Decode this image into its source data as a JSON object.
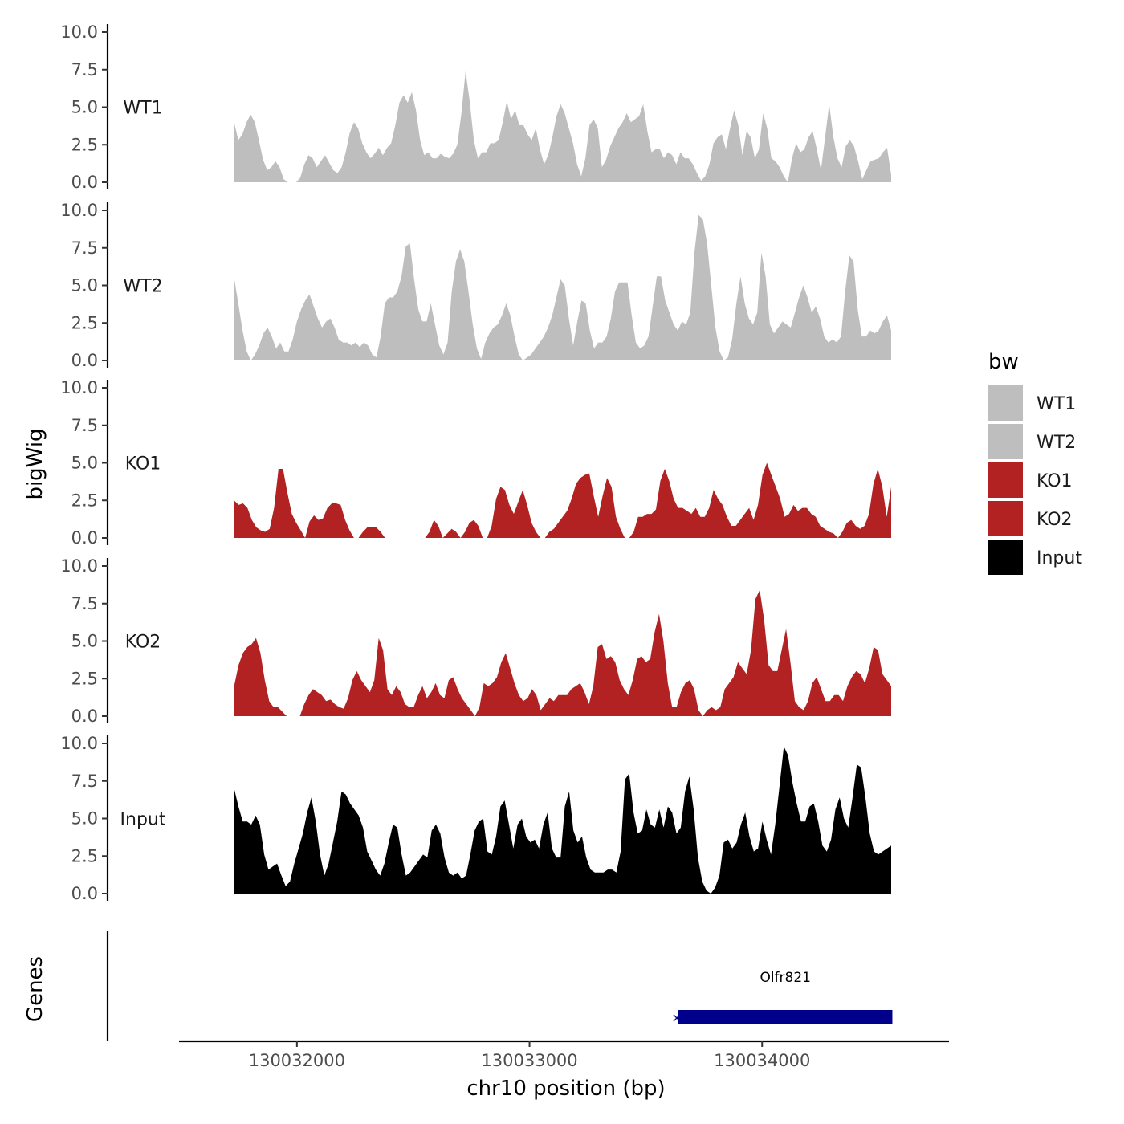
{
  "chart_data": {
    "type": "area",
    "xlabel": "chr10 position (bp)",
    "ylabel": "bigWig",
    "genes_ylabel": "Genes",
    "xlim": [
      130031500,
      130034800
    ],
    "x_ticks": [
      130032000,
      130033000,
      130034000
    ],
    "x_tick_labels": [
      "130032000",
      "130033000",
      "130034000"
    ],
    "ylim": [
      0,
      10
    ],
    "y_ticks": [
      0,
      2.5,
      5,
      7.5,
      10
    ],
    "y_tick_labels": [
      "0.0",
      "2.5",
      "5.0",
      "7.5",
      "10.0"
    ],
    "x_start": 130031730,
    "x_end": 130034555,
    "legend": {
      "title": "bw",
      "entries": [
        {
          "label": "WT1",
          "color": "#bebebe"
        },
        {
          "label": "WT2",
          "color": "#bebebe"
        },
        {
          "label": "KO1",
          "color": "#b22222"
        },
        {
          "label": "KO2",
          "color": "#b22222"
        },
        {
          "label": "Input",
          "color": "#000000"
        }
      ]
    },
    "series": [
      {
        "name": "WT1",
        "color": "#bebebe",
        "values": [
          4.0,
          2.8,
          3.2,
          4.0,
          4.5,
          4.0,
          2.8,
          1.5,
          0.8,
          1.0,
          1.4,
          1.0,
          0.2,
          0,
          0,
          0,
          0.3,
          1.2,
          1.8,
          1.6,
          1.0,
          1.4,
          1.8,
          1.3,
          0.8,
          0.6,
          1.0,
          2.0,
          3.3,
          4.0,
          3.6,
          2.6,
          2.0,
          1.6,
          1.9,
          2.3,
          1.8,
          2.3,
          2.6,
          3.8,
          5.3,
          5.8,
          5.3,
          6.0,
          4.8,
          2.8,
          1.8,
          2.0,
          1.6,
          1.6,
          1.9,
          1.7,
          1.6,
          1.9,
          2.5,
          4.6,
          7.4,
          5.4,
          2.8,
          1.6,
          2.0,
          2.0,
          2.6,
          2.6,
          2.8,
          4.0,
          5.4,
          4.2,
          4.8,
          3.8,
          3.8,
          3.2,
          2.8,
          3.6,
          2.2,
          1.2,
          1.8,
          3.0,
          4.4,
          5.2,
          4.6,
          3.6,
          2.6,
          1.2,
          0.4,
          1.6,
          3.8,
          4.2,
          3.6,
          1.0,
          1.5,
          2.4,
          3.0,
          3.6,
          4.0,
          4.6,
          4.0,
          4.2,
          4.4,
          5.2,
          3.4,
          2.0,
          2.2,
          2.2,
          1.6,
          2.0,
          1.8,
          1.2,
          2.0,
          1.6,
          1.6,
          1.2,
          0.6,
          0.1,
          0.4,
          1.2,
          2.6,
          3.0,
          3.2,
          2.2,
          3.6,
          4.8,
          3.8,
          1.8,
          3.4,
          3.0,
          1.6,
          2.2,
          4.6,
          3.6,
          1.6,
          1.4,
          1.0,
          0.4,
          0.0,
          1.6,
          2.6,
          2.0,
          2.2,
          3.0,
          3.4,
          2.2,
          0.8,
          3.0,
          5.2,
          3.0,
          1.6,
          1.0,
          2.4,
          2.8,
          2.4,
          1.4,
          0.2,
          0.8,
          1.4,
          1.5,
          1.6,
          2.0,
          2.3,
          0.5
        ]
      },
      {
        "name": "WT2",
        "color": "#bebebe",
        "values": [
          5.5,
          3.8,
          2.0,
          0.6,
          0.0,
          0.4,
          1.0,
          1.8,
          2.2,
          1.6,
          0.8,
          1.2,
          0.6,
          0.6,
          1.4,
          2.6,
          3.4,
          4.0,
          4.4,
          3.6,
          2.8,
          2.2,
          2.6,
          2.8,
          2.2,
          1.4,
          1.2,
          1.2,
          1.0,
          1.2,
          0.9,
          1.2,
          1.0,
          0.4,
          0.2,
          1.6,
          3.8,
          4.2,
          4.2,
          4.6,
          5.6,
          7.6,
          7.8,
          5.4,
          3.4,
          2.6,
          2.6,
          3.8,
          2.4,
          1.0,
          0.4,
          1.2,
          4.6,
          6.6,
          7.4,
          6.6,
          4.6,
          2.4,
          0.8,
          0.1,
          1.2,
          1.8,
          2.2,
          2.4,
          3.0,
          3.8,
          3.0,
          1.6,
          0.4,
          0.0,
          0.2,
          0.4,
          0.8,
          1.2,
          1.6,
          2.2,
          3.0,
          4.2,
          5.4,
          5.0,
          2.8,
          1.0,
          2.6,
          4.0,
          3.8,
          2.0,
          0.8,
          1.2,
          1.2,
          1.6,
          2.8,
          4.6,
          5.2,
          5.2,
          5.2,
          3.0,
          1.2,
          0.8,
          1.0,
          1.6,
          3.6,
          5.6,
          5.6,
          4.0,
          3.2,
          2.4,
          2.0,
          2.6,
          2.4,
          3.2,
          7.2,
          9.7,
          9.4,
          7.8,
          5.0,
          2.2,
          0.6,
          0.0,
          0.2,
          1.4,
          3.8,
          5.6,
          3.8,
          2.8,
          2.4,
          3.2,
          7.2,
          5.6,
          2.4,
          1.8,
          2.2,
          2.6,
          2.4,
          2.2,
          3.2,
          4.2,
          5.0,
          4.2,
          3.2,
          3.6,
          2.8,
          1.6,
          1.2,
          1.4,
          1.2,
          1.6,
          4.6,
          7.0,
          6.6,
          3.4,
          1.6,
          1.6,
          2.0,
          1.8,
          2.0,
          2.6,
          3.0,
          2.0
        ]
      },
      {
        "name": "KO1",
        "color": "#b22222",
        "values": [
          2.5,
          2.2,
          2.3,
          2.0,
          1.2,
          0.7,
          0.5,
          0.4,
          0.6,
          2.0,
          4.6,
          4.6,
          3.0,
          1.6,
          1.0,
          0.5,
          0.0,
          1.1,
          1.5,
          1.2,
          1.3,
          2.0,
          2.3,
          2.3,
          2.2,
          1.2,
          0.5,
          0.0,
          0.0,
          0.4,
          0.7,
          0.7,
          0.7,
          0.4,
          0.0,
          0,
          0,
          0,
          0,
          0,
          0,
          0,
          0,
          0.0,
          0.4,
          1.2,
          0.8,
          0.0,
          0.3,
          0.6,
          0.4,
          0.0,
          0.4,
          1.0,
          1.2,
          0.8,
          0.0,
          0.0,
          0.8,
          2.6,
          3.4,
          3.2,
          2.2,
          1.6,
          2.4,
          3.2,
          2.2,
          1.0,
          0.4,
          0.0,
          0.0,
          0.4,
          0.6,
          1.0,
          1.4,
          1.8,
          2.6,
          3.6,
          4.0,
          4.2,
          4.3,
          2.8,
          1.4,
          2.8,
          4.0,
          3.4,
          1.4,
          0.6,
          0.0,
          0.0,
          0.4,
          1.4,
          1.4,
          1.6,
          1.6,
          1.9,
          3.8,
          4.6,
          3.8,
          2.6,
          2.0,
          2.0,
          1.8,
          1.6,
          2.0,
          1.4,
          1.4,
          2.0,
          3.2,
          2.6,
          2.2,
          1.4,
          0.8,
          0.8,
          1.2,
          1.6,
          2.0,
          1.2,
          2.2,
          4.2,
          5.0,
          4.2,
          3.4,
          2.6,
          1.4,
          1.6,
          2.2,
          1.8,
          2.0,
          2.0,
          1.6,
          1.4,
          0.8,
          0.6,
          0.4,
          0.3,
          0.0,
          0.4,
          1.0,
          1.2,
          0.8,
          0.6,
          0.8,
          1.6,
          3.6,
          4.6,
          3.4,
          1.4,
          3.4
        ]
      },
      {
        "name": "KO2",
        "color": "#b22222",
        "values": [
          2.0,
          3.4,
          4.2,
          4.6,
          4.8,
          5.2,
          4.2,
          2.4,
          1.0,
          0.6,
          0.6,
          0.3,
          0,
          0,
          0,
          0,
          0.8,
          1.4,
          1.8,
          1.6,
          1.4,
          1.0,
          1.1,
          0.8,
          0.6,
          0.5,
          1.2,
          2.4,
          3.0,
          2.4,
          2.0,
          1.6,
          2.4,
          5.2,
          4.4,
          1.8,
          1.4,
          2.0,
          1.6,
          0.8,
          0.6,
          0.6,
          1.4,
          2.0,
          1.2,
          1.6,
          2.2,
          1.4,
          1.2,
          2.4,
          2.6,
          1.8,
          1.2,
          0.8,
          0.4,
          0.0,
          0.6,
          2.2,
          2.0,
          2.2,
          2.6,
          3.6,
          4.2,
          3.2,
          2.2,
          1.4,
          1.0,
          1.2,
          1.8,
          1.4,
          0.4,
          0.8,
          1.2,
          1.0,
          1.4,
          1.4,
          1.4,
          1.8,
          2.0,
          2.2,
          1.6,
          0.8,
          2.0,
          4.6,
          4.8,
          3.8,
          4.0,
          3.6,
          2.4,
          1.8,
          1.4,
          2.4,
          3.8,
          4.0,
          3.6,
          3.8,
          5.6,
          6.8,
          5.0,
          2.2,
          0.6,
          0.6,
          1.6,
          2.2,
          2.4,
          1.8,
          0.4,
          0.0,
          0.4,
          0.6,
          0.4,
          0.6,
          1.8,
          2.2,
          2.6,
          3.6,
          3.2,
          2.8,
          4.4,
          7.8,
          8.4,
          6.4,
          3.4,
          3.0,
          3.0,
          4.4,
          5.8,
          3.6,
          1.0,
          0.6,
          0.4,
          1.0,
          2.2,
          2.6,
          1.8,
          1.0,
          1.0,
          1.4,
          1.4,
          1.0,
          2.0,
          2.6,
          3.0,
          2.8,
          2.2,
          3.2,
          4.6,
          4.4,
          2.8,
          2.4,
          2.0
        ]
      },
      {
        "name": "Input",
        "color": "#000000",
        "values": [
          7.0,
          5.8,
          4.8,
          4.8,
          4.6,
          5.2,
          4.6,
          2.6,
          1.6,
          1.8,
          2.0,
          1.2,
          0.5,
          0.8,
          2.0,
          3.0,
          4.0,
          5.4,
          6.4,
          4.8,
          2.6,
          1.2,
          2.0,
          3.4,
          4.8,
          6.8,
          6.6,
          6.0,
          5.6,
          5.2,
          4.4,
          2.8,
          2.2,
          1.6,
          1.2,
          2.0,
          3.4,
          4.6,
          4.4,
          2.6,
          1.2,
          1.4,
          1.8,
          2.2,
          2.6,
          2.4,
          4.2,
          4.6,
          4.0,
          2.4,
          1.4,
          1.2,
          1.4,
          1.0,
          1.2,
          2.6,
          4.2,
          4.8,
          5.0,
          2.8,
          2.6,
          3.8,
          5.8,
          6.2,
          4.6,
          3.0,
          4.6,
          5.0,
          3.8,
          3.4,
          3.6,
          3.0,
          4.6,
          5.4,
          3.0,
          2.4,
          2.4,
          5.8,
          6.8,
          4.2,
          3.4,
          3.8,
          2.4,
          1.6,
          1.4,
          1.4,
          1.4,
          1.6,
          1.6,
          1.4,
          2.8,
          7.6,
          8.0,
          5.4,
          4.0,
          4.2,
          5.6,
          4.6,
          4.4,
          5.6,
          4.4,
          5.8,
          5.4,
          4.0,
          4.4,
          6.8,
          7.8,
          5.6,
          2.4,
          0.8,
          0.2,
          0.0,
          0.4,
          1.2,
          3.4,
          3.6,
          3.0,
          3.4,
          4.6,
          5.4,
          3.8,
          2.8,
          3.0,
          4.8,
          3.6,
          2.6,
          4.6,
          7.2,
          9.8,
          9.2,
          7.4,
          6.0,
          4.8,
          4.8,
          5.8,
          6.0,
          4.8,
          3.2,
          2.8,
          3.6,
          5.6,
          6.4,
          5.0,
          4.4,
          6.4,
          8.6,
          8.4,
          6.4,
          4.0,
          2.8,
          2.6,
          2.8,
          3.0,
          3.2
        ]
      }
    ],
    "genes": [
      {
        "name": "Olfr821",
        "start": 130033640,
        "end": 130034560,
        "strand": "-",
        "color": "#00008b"
      }
    ]
  }
}
